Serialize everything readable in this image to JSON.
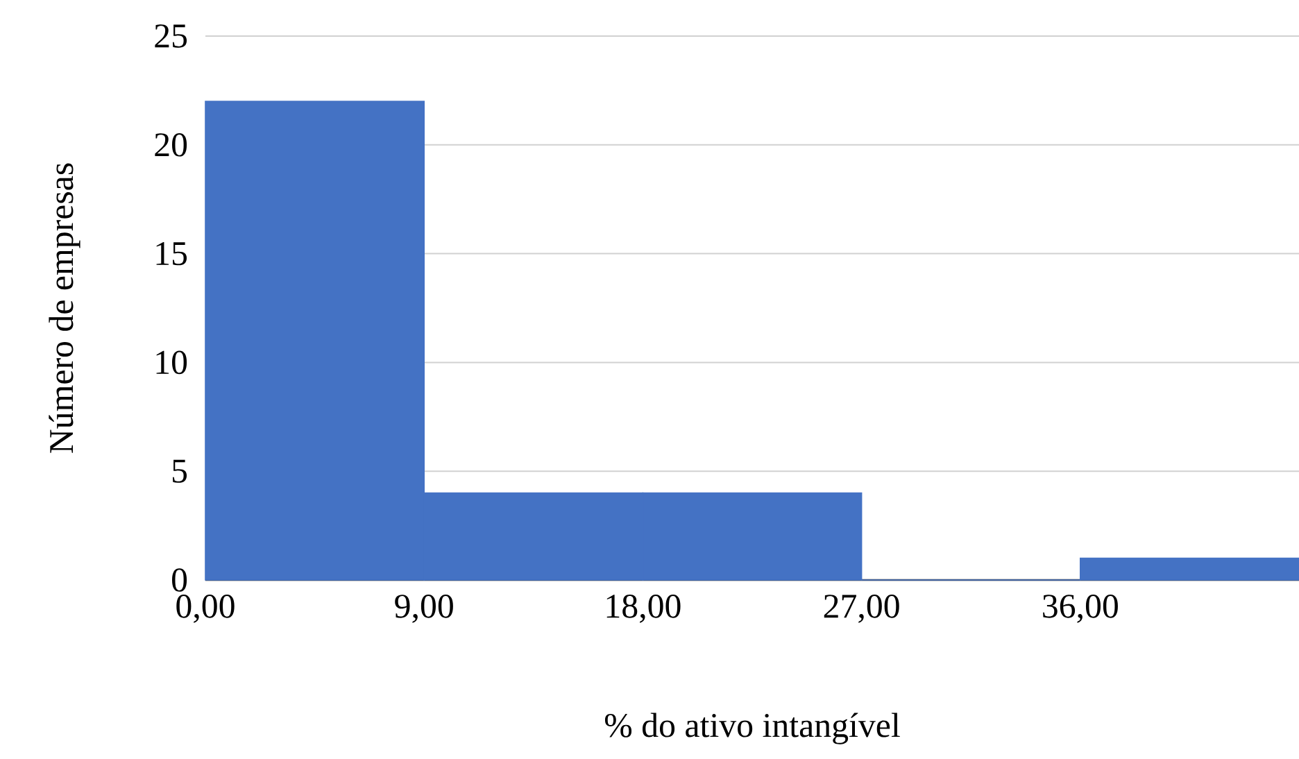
{
  "chart_data": {
    "type": "histogram",
    "xlabel": "% do ativo intangível",
    "ylabel": "Número de empresas",
    "bins": [
      0,
      9,
      18,
      27,
      36,
      45
    ],
    "values": [
      22,
      4,
      4,
      0,
      1
    ],
    "color": "#4472c4",
    "xlim": [
      0,
      45
    ],
    "ylim": [
      0,
      25
    ],
    "xticks": [
      {
        "value": 0,
        "label": "0,00"
      },
      {
        "value": 9,
        "label": "9,00"
      },
      {
        "value": 18,
        "label": "18,00"
      },
      {
        "value": 27,
        "label": "27,00"
      },
      {
        "value": 36,
        "label": "36,00"
      }
    ],
    "yticks": [
      0,
      5,
      10,
      15,
      20,
      25
    ],
    "grid": "y"
  }
}
